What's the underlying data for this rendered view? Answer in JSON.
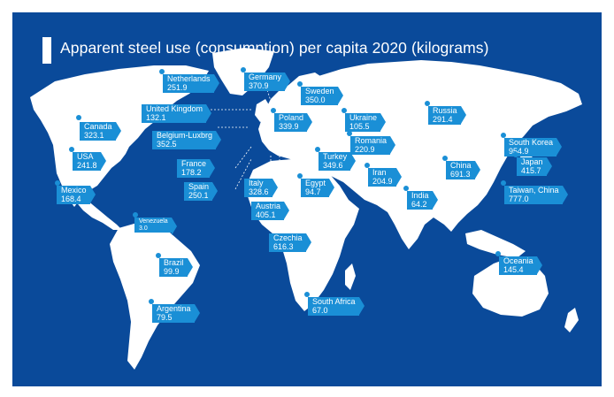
{
  "title": "Apparent steel use (consumption) per capita 2020 (kilograms)",
  "colors": {
    "ocean": "#0a4a9a",
    "land": "#ffffff",
    "label": "#1a8fd6",
    "text": "#ffffff"
  },
  "labels": [
    {
      "id": "netherlands",
      "name": "Netherlands",
      "value": "251.9"
    },
    {
      "id": "germany",
      "name": "Germany",
      "value": "370.9"
    },
    {
      "id": "sweden",
      "name": "Sweden",
      "value": "350.0"
    },
    {
      "id": "united-kingdom",
      "name": "United Kingdom",
      "value": "132.1"
    },
    {
      "id": "poland",
      "name": "Poland",
      "value": "339.9"
    },
    {
      "id": "ukraine",
      "name": "Ukraine",
      "value": "105.5"
    },
    {
      "id": "russia",
      "name": "Russia",
      "value": "291.4"
    },
    {
      "id": "canada",
      "name": "Canada",
      "value": "323.1"
    },
    {
      "id": "belgium-luxbrg",
      "name": "Belgium-Luxbrg",
      "value": "352.5"
    },
    {
      "id": "romania",
      "name": "Romania",
      "value": "220.9"
    },
    {
      "id": "south-korea",
      "name": "South Korea",
      "value": "954.9"
    },
    {
      "id": "usa",
      "name": "USA",
      "value": "241.8"
    },
    {
      "id": "turkey",
      "name": "Turkey",
      "value": "349.6"
    },
    {
      "id": "france",
      "name": "France",
      "value": "178.2"
    },
    {
      "id": "china",
      "name": "China",
      "value": "691.3"
    },
    {
      "id": "japan",
      "name": "Japan",
      "value": "415.7"
    },
    {
      "id": "iran",
      "name": "Iran",
      "value": "204.9"
    },
    {
      "id": "italy",
      "name": "Italy",
      "value": "328.6"
    },
    {
      "id": "egypt",
      "name": "Egypt",
      "value": "94.7"
    },
    {
      "id": "mexico",
      "name": "Mexico",
      "value": "168.4"
    },
    {
      "id": "spain",
      "name": "Spain",
      "value": "250.1"
    },
    {
      "id": "taiwan-china",
      "name": "Taiwan, China",
      "value": "777.0"
    },
    {
      "id": "india",
      "name": "India",
      "value": "64.2"
    },
    {
      "id": "austria",
      "name": "Austria",
      "value": "405.1"
    },
    {
      "id": "venezuela",
      "name": "Venezuela",
      "value": "3.0"
    },
    {
      "id": "czechia",
      "name": "Czechia",
      "value": "616.3"
    },
    {
      "id": "brazil",
      "name": "Brazil",
      "value": "99.9"
    },
    {
      "id": "oceania",
      "name": "Oceania",
      "value": "145.4"
    },
    {
      "id": "south-africa",
      "name": "South Africa",
      "value": "67.0"
    },
    {
      "id": "argentina",
      "name": "Argentina",
      "value": "79.5"
    }
  ]
}
